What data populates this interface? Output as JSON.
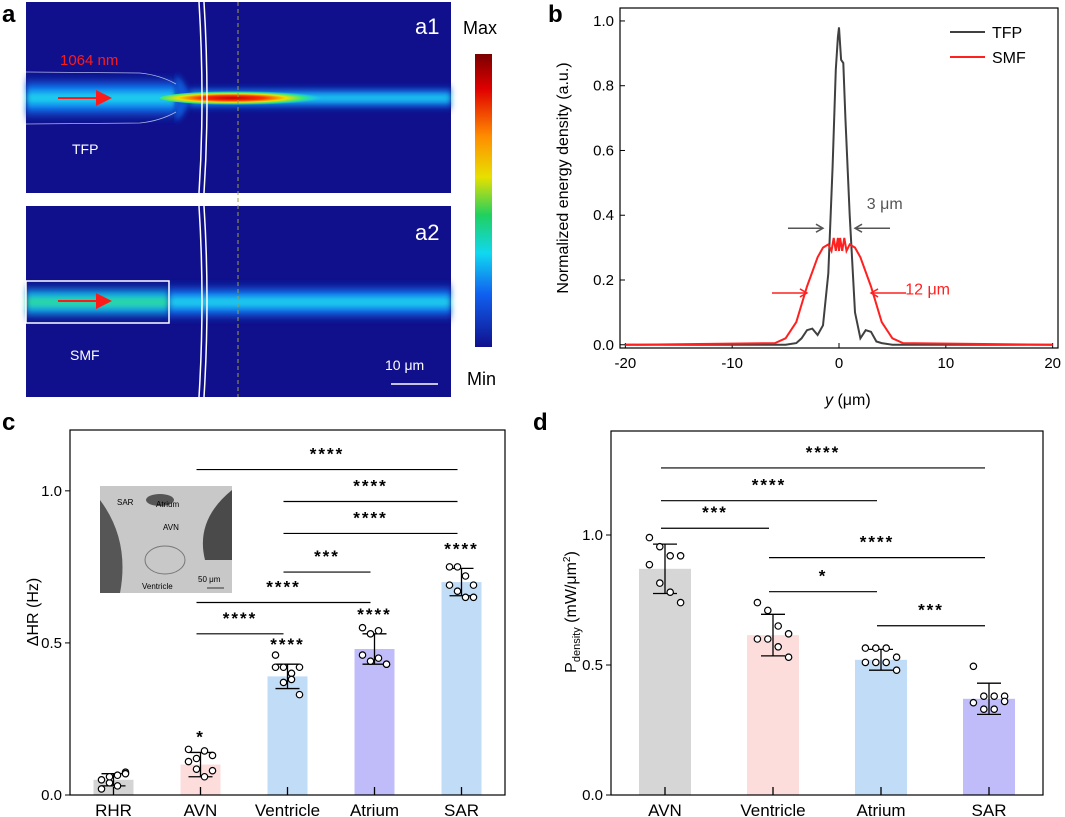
{
  "panel_labels": {
    "a": "a",
    "b": "b",
    "c": "c",
    "d": "d"
  },
  "panel_a": {
    "sub1": "a1",
    "sub2": "a2",
    "wavelength": "1064 nm",
    "fiber1": "TFP",
    "fiber2": "SMF",
    "scale_bar": "10 μm",
    "colorbar_max": "Max",
    "colorbar_min": "Min",
    "colors": {
      "background": "#10108c",
      "beam": "#19d6f0",
      "hot": "#c80000",
      "arrow": "#ff1a1a"
    }
  },
  "chart_data": [
    {
      "id": "b",
      "type": "line",
      "xlabel_italic": "y",
      "xlabel_unit": " (μm)",
      "ylabel": "Normalized energy density (a.u.)",
      "xlim": [
        -20.5,
        20.5
      ],
      "ylim": [
        -0.01,
        1.04
      ],
      "xticks": [
        -20,
        -10,
        0,
        10,
        20
      ],
      "yticks": [
        0.0,
        0.2,
        0.4,
        0.6,
        0.8,
        1.0
      ],
      "ytick_labels": [
        "0.0",
        "0.2",
        "0.4",
        "0.6",
        "0.8",
        "1.0"
      ],
      "legend": "top-right",
      "series": [
        {
          "name": "TFP",
          "color": "#404040",
          "x": [
            -20,
            -5,
            -4,
            -3.5,
            -3,
            -2.5,
            -2,
            -1.5,
            -1,
            -0.6,
            -0.3,
            -0.1,
            0,
            0.2,
            0.4,
            0.6,
            1,
            1.5,
            2,
            2.5,
            3,
            3.5,
            4,
            5,
            20
          ],
          "y": [
            0,
            0,
            0.005,
            0.02,
            0.045,
            0.05,
            0.03,
            0.06,
            0.22,
            0.55,
            0.85,
            0.95,
            0.98,
            0.88,
            0.87,
            0.7,
            0.4,
            0.1,
            0.02,
            0.045,
            0.04,
            0.01,
            0.005,
            0,
            0
          ]
        },
        {
          "name": "SMF",
          "color": "#ff2020",
          "x": [
            -20,
            -6,
            -5,
            -4,
            -3,
            -2,
            -1.5,
            -1,
            -0.7,
            -0.5,
            -0.3,
            -0.1,
            0,
            0.1,
            0.3,
            0.5,
            0.7,
            1,
            1.5,
            2,
            3,
            4,
            5,
            6,
            20
          ],
          "y": [
            0,
            0.005,
            0.02,
            0.07,
            0.18,
            0.27,
            0.3,
            0.31,
            0.29,
            0.33,
            0.29,
            0.33,
            0.29,
            0.33,
            0.29,
            0.33,
            0.29,
            0.31,
            0.3,
            0.27,
            0.18,
            0.07,
            0.02,
            0.005,
            0
          ]
        }
      ],
      "annotations": [
        {
          "text": "3 μm",
          "color": "#555555",
          "x": 2.6,
          "y": 0.42,
          "arrow_from": [
            -1.5,
            0.36
          ],
          "arrow_to": [
            1.5,
            0.36
          ]
        },
        {
          "text": "12 μm",
          "color": "#ff2020",
          "x": 6.2,
          "y": 0.155,
          "arrow_from": [
            -3,
            0.16
          ],
          "arrow_to": [
            3,
            0.16
          ]
        }
      ]
    },
    {
      "id": "c",
      "type": "bar",
      "ylabel": "ΔHR (Hz)",
      "ylim": [
        0,
        1.2
      ],
      "yticks": [
        0.0,
        0.5,
        1.0
      ],
      "ytick_labels": [
        "0.0",
        "0.5",
        "1.0"
      ],
      "categories": [
        "RHR",
        "AVN",
        "Ventricle",
        "Atrium",
        "SAR"
      ],
      "colors": [
        "#d4d4d4",
        "#fddcdc",
        "#c1dcf6",
        "#c0bcfa",
        "#c1dcf6"
      ],
      "values": [
        0.05,
        0.1,
        0.39,
        0.48,
        0.7
      ],
      "sd": [
        0.02,
        0.04,
        0.04,
        0.05,
        0.045
      ],
      "points": [
        [
          0.02,
          0.04,
          0.065,
          0.075,
          0.05,
          0.06,
          0.03,
          0.07
        ],
        [
          0.15,
          0.12,
          0.145,
          0.13,
          0.11,
          0.085,
          0.06,
          0.08
        ],
        [
          0.46,
          0.42,
          0.4,
          0.42,
          0.42,
          0.37,
          0.38,
          0.33
        ],
        [
          0.55,
          0.53,
          0.54,
          0.43,
          0.46,
          0.44,
          0.45,
          0.43
        ],
        [
          0.75,
          0.75,
          0.72,
          0.69,
          0.69,
          0.67,
          0.65,
          0.65
        ]
      ],
      "bar_stars": [
        "",
        "*",
        "****",
        "****",
        "****"
      ],
      "brackets": [
        {
          "from": 1,
          "to": 4,
          "y": 1.07,
          "label": "****"
        },
        {
          "from": 2,
          "to": 4,
          "y": 0.965,
          "label": "****"
        },
        {
          "from": 2,
          "to": 4,
          "y": 0.86,
          "label": "****"
        },
        {
          "from": 2,
          "to": 3,
          "y": 0.733,
          "label": "***"
        },
        {
          "from": 1,
          "to": 3,
          "y": 0.633,
          "label": "****"
        },
        {
          "from": 1,
          "to": 2,
          "y": 0.53,
          "label": "****"
        }
      ],
      "inset": {
        "labels": [
          "SAR",
          "Atrium",
          "AVN",
          "Ventricle"
        ],
        "scale_bar": "50 μm"
      }
    },
    {
      "id": "d",
      "type": "bar",
      "ylabel_main": "P",
      "ylabel_sub": "density",
      "ylabel_unit": " (mW/μm",
      "ylabel_sup": "2",
      "ylabel_close": ")",
      "ylim": [
        0,
        1.4
      ],
      "yticks": [
        0.0,
        0.5,
        1.0
      ],
      "ytick_labels": [
        "0.0",
        "0.5",
        "1.0"
      ],
      "categories": [
        "AVN",
        "Ventricle",
        "Atrium",
        "SAR"
      ],
      "colors": [
        "#d6d6d6",
        "#fddcdc",
        "#c1dcf6",
        "#c0bcfa"
      ],
      "values": [
        0.87,
        0.615,
        0.52,
        0.37
      ],
      "sd": [
        0.095,
        0.08,
        0.04,
        0.06
      ],
      "points": [
        [
          0.99,
          0.955,
          0.92,
          0.92,
          0.886,
          0.815,
          0.78,
          0.74
        ],
        [
          0.74,
          0.71,
          0.65,
          0.62,
          0.6,
          0.6,
          0.57,
          0.53
        ],
        [
          0.565,
          0.565,
          0.565,
          0.53,
          0.51,
          0.51,
          0.51,
          0.48
        ],
        [
          0.495,
          0.38,
          0.38,
          0.38,
          0.355,
          0.33,
          0.33,
          0.36
        ]
      ],
      "bar_stars": [
        "",
        "",
        "",
        ""
      ],
      "brackets": [
        {
          "from": 0,
          "to": 3,
          "y": 1.258,
          "label": "****"
        },
        {
          "from": 0,
          "to": 2,
          "y": 1.132,
          "label": "****"
        },
        {
          "from": 0,
          "to": 1,
          "y": 1.026,
          "label": "***"
        },
        {
          "from": 1,
          "to": 3,
          "y": 0.913,
          "label": "****"
        },
        {
          "from": 1,
          "to": 2,
          "y": 0.782,
          "label": "*"
        },
        {
          "from": 2,
          "to": 3,
          "y": 0.651,
          "label": "***"
        }
      ]
    }
  ]
}
